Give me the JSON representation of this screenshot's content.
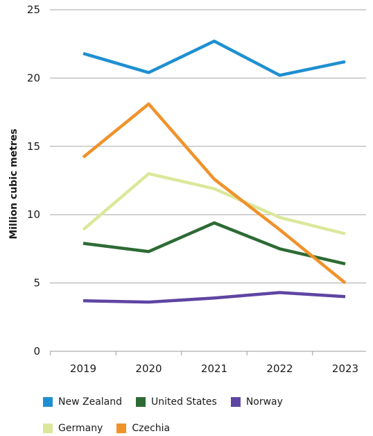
{
  "chart_data": {
    "type": "line",
    "title": "",
    "xlabel": "",
    "ylabel": "Million cubic metres",
    "categories": [
      "2019",
      "2020",
      "2021",
      "2022",
      "2023"
    ],
    "ylim": [
      0,
      25
    ],
    "yticks": [
      "0",
      "5",
      "10",
      "15",
      "20",
      "25"
    ],
    "grid": "horizontal",
    "legend_position": "bottom",
    "series": [
      {
        "name": "New Zealand",
        "color": "#1f8fd1",
        "values": [
          21.8,
          20.4,
          22.7,
          20.2,
          21.2
        ]
      },
      {
        "name": "United States",
        "color": "#2d6b34",
        "values": [
          7.9,
          7.3,
          9.4,
          7.5,
          6.4
        ]
      },
      {
        "name": "Norway",
        "color": "#5e45a3",
        "values": [
          3.7,
          3.6,
          3.9,
          4.3,
          4.0
        ]
      },
      {
        "name": "Germany",
        "color": "#dbe89b",
        "values": [
          8.9,
          13.0,
          11.9,
          9.8,
          8.6
        ]
      },
      {
        "name": "Czechia",
        "color": "#f0922a",
        "values": [
          14.2,
          18.1,
          12.6,
          8.9,
          5.0
        ]
      }
    ]
  }
}
